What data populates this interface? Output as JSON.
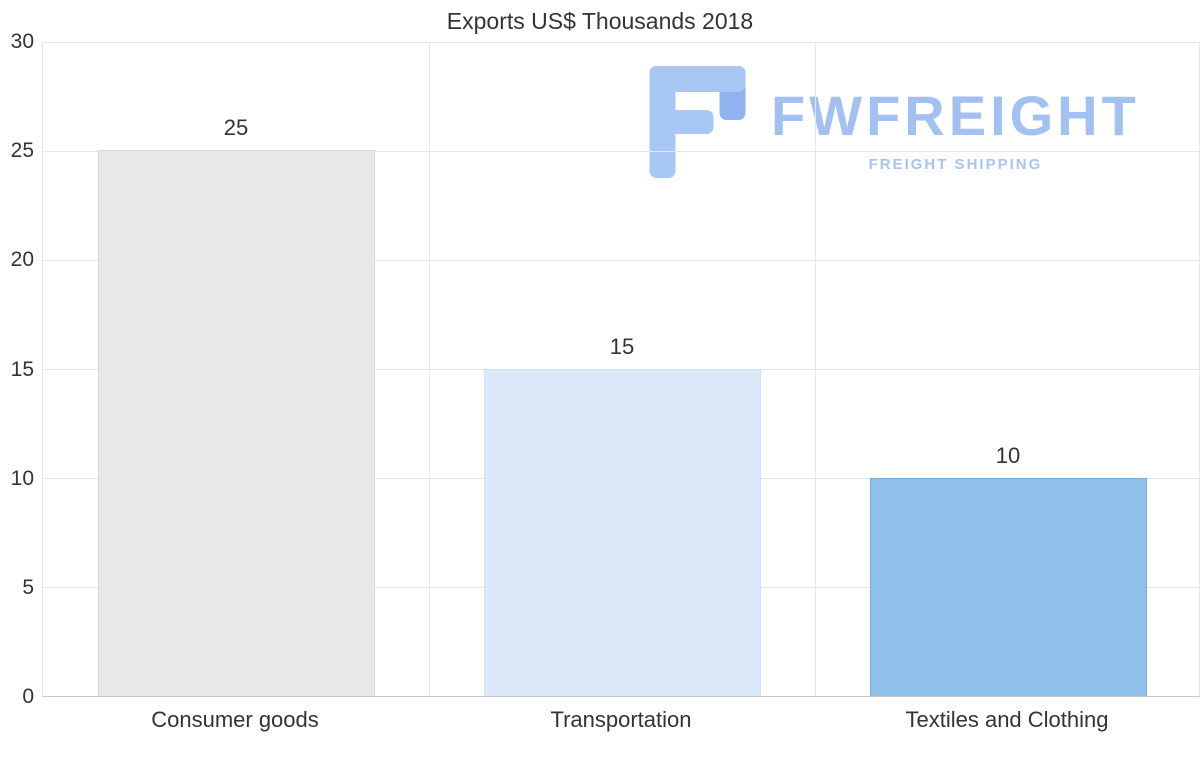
{
  "chart_data": {
    "type": "bar",
    "title": "Exports US$ Thousands 2018",
    "categories": [
      "Consumer goods",
      "Transportation",
      "Textiles and Clothing"
    ],
    "values": [
      25,
      15,
      10
    ],
    "value_labels": [
      "25",
      "15",
      "10"
    ],
    "bar_colors": [
      "#e8e8e8",
      "#dbe9fa",
      "#8fc0e9"
    ],
    "bar_borders": [
      "#dadada",
      "#cfe2f6",
      "#7aafdd"
    ],
    "ylim": [
      0,
      30
    ],
    "yticks": [
      0,
      5,
      10,
      15,
      20,
      25,
      30
    ],
    "xlabel": "",
    "ylabel": "",
    "grid": true,
    "legend": "none"
  },
  "watermark": {
    "brand": "FWFREIGHT",
    "tagline": "FREIGHT SHIPPING",
    "brand_color": "#a2c1f1",
    "tagline_color": "#a8c3ef",
    "icon_colors": [
      "#a9c7f5",
      "#8fb3f0"
    ]
  },
  "colors": {
    "title": "#333333",
    "axis_label": "#333333",
    "gridline": "#e6e6e6",
    "axis_line": "#c9c9c9",
    "background": "#ffffff"
  }
}
